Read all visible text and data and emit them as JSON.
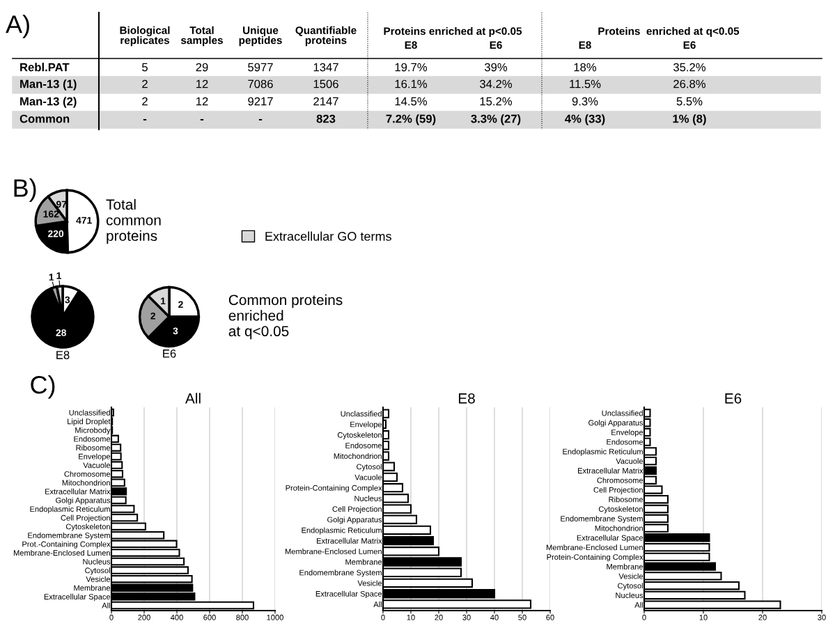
{
  "chart_data": [
    {
      "type": "other",
      "title": "A)",
      "categories": [
        "Biological\nreplicates",
        "Total\nsamples",
        "Unique\npeptides",
        "Quantifiable\nproteins",
        "E8",
        "E6",
        "E8",
        "E6"
      ],
      "y_categories": [
        "Rebl.PAT",
        "Man-13 (1)",
        "Man-13 (2)",
        "Common"
      ],
      "cell_labels": [
        [
          "5",
          "29",
          "5977",
          "1347",
          "19.7%",
          "39%",
          "18%",
          "35.2%"
        ],
        [
          "2",
          "12",
          "7086",
          "1506",
          "16.1%",
          "34.2%",
          "11.5%",
          "26.8%"
        ],
        [
          "2",
          "12",
          "9217",
          "2147",
          "14.5%",
          "15.2%",
          "9.3%",
          "5.5%"
        ],
        [
          "-",
          "-",
          "-",
          "823",
          "7.2% (59)",
          "3.3% (27)",
          "4% (33)",
          "1% (8)"
        ]
      ],
      "annotations": [
        "Proteins enriched at p<0.05",
        "Proteins  enriched at q<0.05"
      ]
    },
    {
      "type": "pie",
      "title": "Total\ncommon\nproteins",
      "annotations": [
        "B)"
      ],
      "categories": [
        null,
        null,
        null,
        "Extracellular GO terms"
      ],
      "values": [
        471,
        220,
        162,
        97
      ],
      "colors": [
        "#ffffff",
        "#000000",
        "#a0a0a0",
        "#d9d9d9"
      ],
      "data_labels": true,
      "legend": "right"
    },
    {
      "type": "pie",
      "title": "E8",
      "categories": [
        null,
        null,
        null,
        null
      ],
      "values": [
        3,
        28,
        1,
        1
      ],
      "colors": [
        "#ffffff",
        "#000000",
        "#a0a0a0",
        "#d9d9d9"
      ],
      "data_labels": true
    },
    {
      "type": "pie",
      "title": "E6",
      "annotations": [
        "Common proteins\nenriched\nat q<0.05"
      ],
      "categories": [
        null,
        null,
        null,
        null
      ],
      "values": [
        2,
        3,
        2,
        1
      ],
      "colors": [
        "#ffffff",
        "#000000",
        "#a0a0a0",
        "#d9d9d9"
      ],
      "data_labels": true
    },
    {
      "type": "bar",
      "orientation": "horizontal",
      "title": "All",
      "annotations": [
        "C)"
      ],
      "grid": "x",
      "xlim": [
        0,
        1000
      ],
      "xticks": [
        0,
        200,
        400,
        600,
        800,
        1000
      ],
      "categories": [
        "Unclassified",
        "Lipid Droplet",
        "Microbody",
        "Endosome",
        "Ribosome",
        "Envelope",
        "Vacuole",
        "Chromosome",
        "Mitochondrion",
        "Extracellular Matrix",
        "Golgi Apparatus",
        "Endoplasmic Reticulum",
        "Cell Projection",
        "Cytoskeleton",
        "Endomembrane System",
        "Prot.-Containing Complex",
        "Membrane-Enclosed Lumen",
        "Nucleus",
        "Cytosol",
        "Vesicle",
        "Membrane",
        "Extracellular Space",
        "All"
      ],
      "values": [
        12,
        5,
        5,
        42,
        56,
        58,
        65,
        68,
        80,
        90,
        88,
        138,
        158,
        208,
        320,
        398,
        415,
        443,
        468,
        492,
        495,
        508,
        868
      ],
      "colors": [
        "#ffffff",
        "#ffffff",
        "#ffffff",
        "#ffffff",
        "#ffffff",
        "#ffffff",
        "#ffffff",
        "#ffffff",
        "#ffffff",
        "#000000",
        "#ffffff",
        "#ffffff",
        "#ffffff",
        "#ffffff",
        "#ffffff",
        "#ffffff",
        "#ffffff",
        "#ffffff",
        "#ffffff",
        "#ffffff",
        "#000000",
        "#000000",
        "#ffffff"
      ]
    },
    {
      "type": "bar",
      "orientation": "horizontal",
      "title": "E8",
      "grid": "x",
      "xlim": [
        0,
        60
      ],
      "xticks": [
        0,
        10,
        20,
        30,
        40,
        50,
        60
      ],
      "categories": [
        "Unclassified",
        "Envelope",
        "Cytoskeleton",
        "Endosome",
        "Mitochondrion",
        "Cytosol",
        "Vacuole",
        "Protein-Containing Complex",
        "Nucleus",
        "Cell Projection",
        "Golgi Apparatus",
        "Endoplasmic Reticulum",
        "Extracellular Matrix",
        "Membrane-Enclosed Lumen",
        "Membrane",
        "Endomembrane System",
        "Vesicle",
        "Extracellular Space",
        "All"
      ],
      "values": [
        2,
        1,
        2,
        2,
        2,
        4,
        5,
        7,
        9,
        10,
        12,
        17,
        18,
        20,
        28,
        28,
        32,
        40,
        53
      ],
      "colors": [
        "#ffffff",
        "#ffffff",
        "#ffffff",
        "#ffffff",
        "#ffffff",
        "#ffffff",
        "#ffffff",
        "#ffffff",
        "#ffffff",
        "#ffffff",
        "#ffffff",
        "#ffffff",
        "#000000",
        "#ffffff",
        "#000000",
        "#ffffff",
        "#ffffff",
        "#000000",
        "#ffffff"
      ]
    },
    {
      "type": "bar",
      "orientation": "horizontal",
      "title": "E6",
      "grid": "x",
      "xlim": [
        0,
        30
      ],
      "xticks": [
        0,
        10,
        20,
        30
      ],
      "categories": [
        "Unclassified",
        "Golgi Apparatus",
        "Envelope",
        "Endosome",
        "Endoplasmic Reticulum",
        "Vacuole",
        "Extracellular Matrix",
        "Chromosome",
        "Cell Projection",
        "Ribosome",
        "Cytoskeleton",
        "Endomembrane System",
        "Mitochondrion",
        "Extracellular Space",
        "Membrane-Enclosed Lumen",
        "Protein-Containing Complex",
        "Membrane",
        "Vesicle",
        "Cytosol",
        "Nucleus",
        "All"
      ],
      "values": [
        1,
        1,
        1,
        1,
        2,
        2,
        2,
        2,
        3,
        4,
        4,
        4,
        4,
        11,
        11,
        11,
        12,
        13,
        16,
        17,
        23
      ],
      "colors": [
        "#ffffff",
        "#ffffff",
        "#ffffff",
        "#ffffff",
        "#ffffff",
        "#ffffff",
        "#000000",
        "#ffffff",
        "#ffffff",
        "#ffffff",
        "#ffffff",
        "#ffffff",
        "#ffffff",
        "#000000",
        "#ffffff",
        "#ffffff",
        "#000000",
        "#ffffff",
        "#ffffff",
        "#ffffff",
        "#ffffff"
      ]
    }
  ]
}
